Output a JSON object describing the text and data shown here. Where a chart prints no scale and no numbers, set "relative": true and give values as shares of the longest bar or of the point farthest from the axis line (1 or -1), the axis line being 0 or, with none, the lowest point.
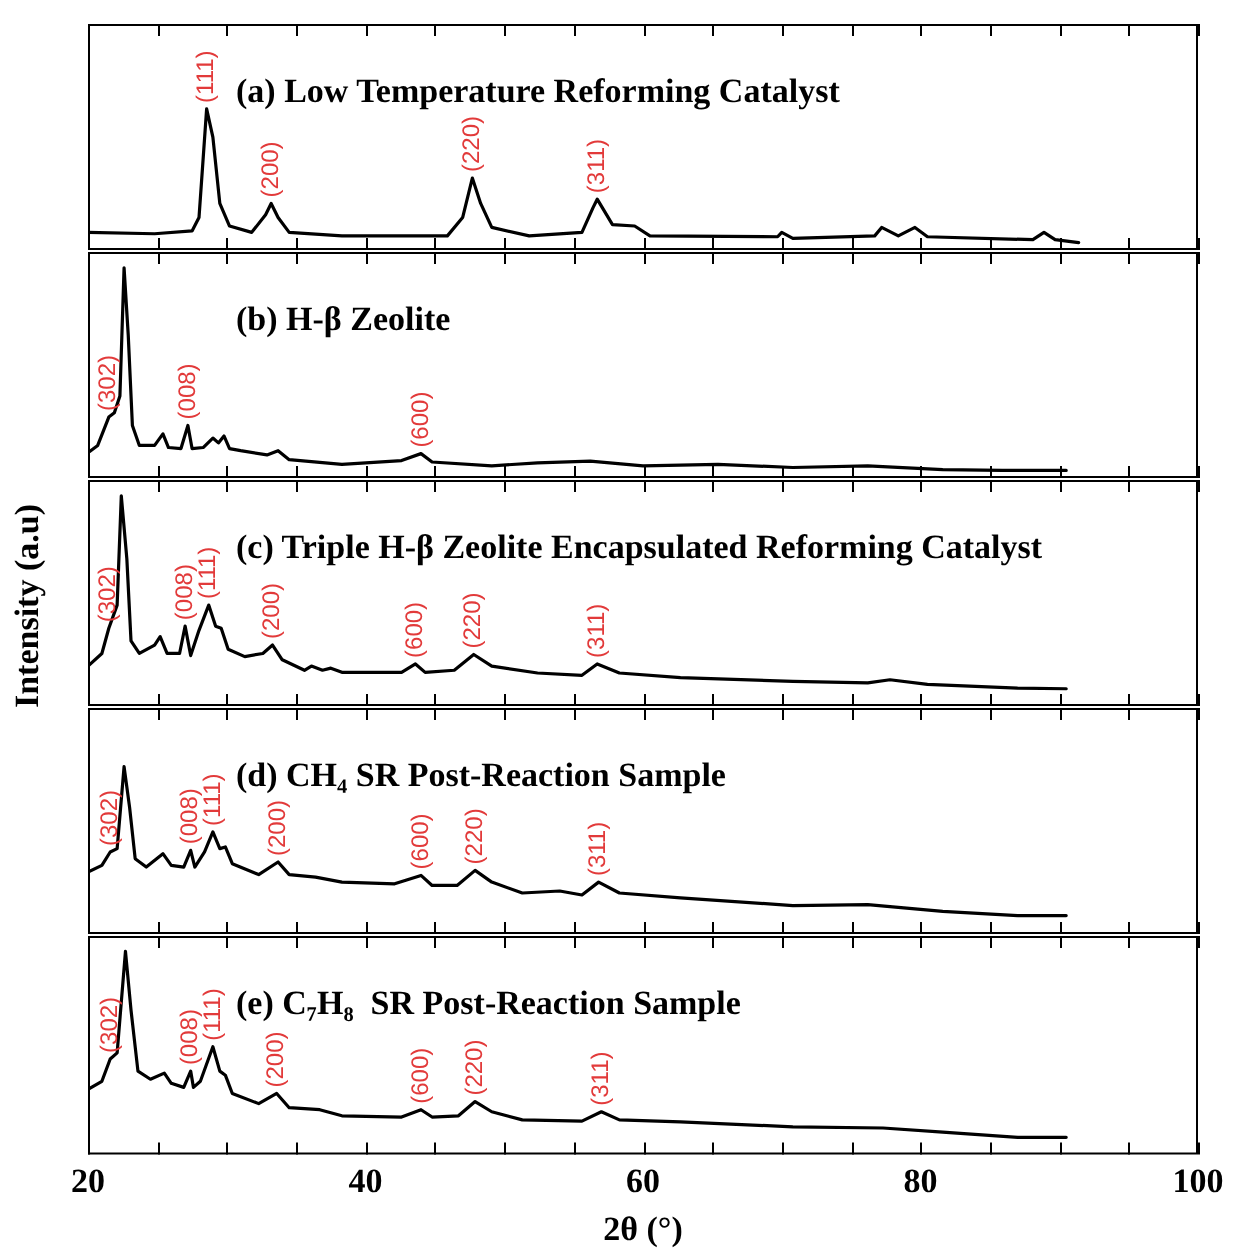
{
  "chart_data": [
    {
      "type": "line",
      "title": "(a) Low Temperature Reforming Catalyst",
      "color": "#000000",
      "relative": true,
      "marker": "none",
      "xlim": [
        20,
        100
      ],
      "tick_labels": false,
      "xticks": [
        20,
        {
          "value": 25,
          "label": null
        },
        {
          "value": 30,
          "label": null
        },
        {
          "value": 35,
          "label": null
        },
        40,
        {
          "value": 45,
          "label": null
        },
        {
          "value": 50,
          "label": null
        },
        {
          "value": 55,
          "label": null
        },
        60,
        {
          "value": 65,
          "label": null
        },
        {
          "value": 70,
          "label": null
        },
        {
          "value": 75,
          "label": null
        },
        80,
        {
          "value": 85,
          "label": null
        },
        {
          "value": 90,
          "label": null
        },
        {
          "value": 95,
          "label": null
        },
        100
      ],
      "x": [
        20,
        24.8,
        27.5,
        28.0,
        28.3,
        28.55,
        29.0,
        29.5,
        30.2,
        31.8,
        32.8,
        33.2,
        33.7,
        34.5,
        38.3,
        45.9,
        47.0,
        47.7,
        48.3,
        49.1,
        51.8,
        55.6,
        56.4,
        56.7,
        57.8,
        59.4,
        60.5,
        69.7,
        70.0,
        70.8,
        76.7,
        77.2,
        78.4,
        79.6,
        80.5,
        88.1,
        88.9,
        89.7,
        91.4
      ],
      "values": [
        0.125,
        0.115,
        0.135,
        0.23,
        0.65,
        1.0,
        0.8,
        0.33,
        0.17,
        0.125,
        0.25,
        0.33,
        0.23,
        0.125,
        0.1,
        0.1,
        0.23,
        0.51,
        0.33,
        0.16,
        0.1,
        0.125,
        0.3,
        0.36,
        0.18,
        0.17,
        0.1,
        0.094,
        0.125,
        0.083,
        0.1,
        0.16,
        0.1,
        0.16,
        0.094,
        0.073,
        0.125,
        0.073,
        0.052
      ],
      "annotations": [
        {
          "text": "(111)",
          "x": 28.55,
          "y": 1.0
        },
        {
          "text": "(200)",
          "x": 33.2,
          "y": 0.33
        },
        {
          "text": "(220)",
          "x": 47.7,
          "y": 0.51
        },
        {
          "text": "(311)",
          "x": 56.7,
          "y": 0.36
        }
      ]
    },
    {
      "type": "line",
      "title": "(b) H-β Zeolite",
      "color": "#000000",
      "relative": true,
      "marker": "none",
      "xlim": [
        20,
        100
      ],
      "tick_labels": false,
      "xticks": [
        20,
        {
          "value": 25,
          "label": null
        },
        {
          "value": 30,
          "label": null
        },
        {
          "value": 35,
          "label": null
        },
        40,
        {
          "value": 45,
          "label": null
        },
        {
          "value": 50,
          "label": null
        },
        {
          "value": 55,
          "label": null
        },
        60,
        {
          "value": 65,
          "label": null
        },
        {
          "value": 70,
          "label": null
        },
        {
          "value": 75,
          "label": null
        },
        80,
        {
          "value": 85,
          "label": null
        },
        {
          "value": 90,
          "label": null
        },
        {
          "value": 95,
          "label": null
        },
        100
      ],
      "x": [
        20,
        20.7,
        21.5,
        21.9,
        22.3,
        22.6,
        22.9,
        23.2,
        23.7,
        24.8,
        25.4,
        25.8,
        26.7,
        27.2,
        27.5,
        28.3,
        29.0,
        29.4,
        29.8,
        30.2,
        31.0,
        32.9,
        33.7,
        34.5,
        38.3,
        42.6,
        44.0,
        44.8,
        49.1,
        52.4,
        56.2,
        60.0,
        65.4,
        70.8,
        76.2,
        81.6,
        85.9,
        90.5
      ],
      "values": [
        0.12,
        0.155,
        0.29,
        0.31,
        0.39,
        1.0,
        0.68,
        0.25,
        0.155,
        0.155,
        0.21,
        0.145,
        0.14,
        0.25,
        0.14,
        0.145,
        0.19,
        0.167,
        0.2,
        0.14,
        0.13,
        0.11,
        0.13,
        0.087,
        0.065,
        0.083,
        0.116,
        0.076,
        0.058,
        0.072,
        0.08,
        0.058,
        0.065,
        0.05,
        0.058,
        0.04,
        0.036,
        0.036
      ],
      "annotations": [
        {
          "text": "(302)",
          "x": 21.5,
          "y": 0.29
        },
        {
          "text": "(008)",
          "x": 27.2,
          "y": 0.25
        },
        {
          "text": "(600)",
          "x": 44.0,
          "y": 0.116
        }
      ]
    },
    {
      "type": "line",
      "title": "(c) Triple H-β Zeolite Encapsulated Reforming Catalyst",
      "ylabel": "Intensity (a.u)",
      "color": "#000000",
      "relative": true,
      "marker": "none",
      "xlim": [
        20,
        100
      ],
      "tick_labels": false,
      "xticks": [
        20,
        {
          "value": 25,
          "label": null
        },
        {
          "value": 30,
          "label": null
        },
        {
          "value": 35,
          "label": null
        },
        40,
        {
          "value": 45,
          "label": null
        },
        {
          "value": 50,
          "label": null
        },
        {
          "value": 55,
          "label": null
        },
        60,
        {
          "value": 65,
          "label": null
        },
        {
          "value": 70,
          "label": null
        },
        {
          "value": 75,
          "label": null
        },
        80,
        {
          "value": 85,
          "label": null
        },
        {
          "value": 90,
          "label": null
        },
        {
          "value": 95,
          "label": null
        },
        100
      ],
      "x": [
        20,
        21.0,
        21.5,
        22.1,
        22.4,
        22.8,
        23.1,
        23.7,
        24.8,
        25.2,
        25.7,
        26.6,
        27.0,
        27.4,
        28.0,
        28.7,
        29.2,
        29.6,
        30.1,
        31.3,
        32.6,
        33.3,
        34.0,
        35.6,
        36.1,
        36.9,
        37.5,
        38.3,
        42.6,
        43.6,
        44.3,
        46.4,
        47.8,
        49.1,
        52.4,
        55.6,
        56.7,
        58.3,
        62.7,
        70.8,
        76.2,
        77.8,
        80.5,
        87.0,
        90.5
      ],
      "values": [
        0.19,
        0.25,
        0.37,
        0.48,
        1.0,
        0.7,
        0.31,
        0.25,
        0.29,
        0.33,
        0.25,
        0.25,
        0.38,
        0.24,
        0.36,
        0.48,
        0.38,
        0.37,
        0.27,
        0.235,
        0.25,
        0.29,
        0.22,
        0.17,
        0.19,
        0.17,
        0.18,
        0.16,
        0.16,
        0.2,
        0.16,
        0.17,
        0.245,
        0.19,
        0.157,
        0.146,
        0.2,
        0.157,
        0.135,
        0.117,
        0.11,
        0.125,
        0.103,
        0.085,
        0.082
      ],
      "annotations": [
        {
          "text": "(302)",
          "x": 21.5,
          "y": 0.37
        },
        {
          "text": "(008)",
          "x": 27.0,
          "y": 0.38
        },
        {
          "text": "(111)",
          "x": 28.7,
          "y": 0.48
        },
        {
          "text": "(200)",
          "x": 33.3,
          "y": 0.29
        },
        {
          "text": "(600)",
          "x": 43.6,
          "y": 0.2
        },
        {
          "text": "(220)",
          "x": 47.8,
          "y": 0.245
        },
        {
          "text": "(311)",
          "x": 56.7,
          "y": 0.2
        }
      ]
    },
    {
      "type": "line",
      "title": "(d) CH₄ SR Post-Reaction Sample",
      "color": "#000000",
      "relative": true,
      "marker": "none",
      "xlim": [
        20,
        100
      ],
      "tick_labels": false,
      "xticks": [
        20,
        {
          "value": 25,
          "label": null
        },
        {
          "value": 30,
          "label": null
        },
        {
          "value": 35,
          "label": null
        },
        40,
        {
          "value": 45,
          "label": null
        },
        {
          "value": 50,
          "label": null
        },
        {
          "value": 55,
          "label": null
        },
        60,
        {
          "value": 65,
          "label": null
        },
        {
          "value": 70,
          "label": null
        },
        {
          "value": 75,
          "label": null
        },
        80,
        {
          "value": 85,
          "label": null
        },
        {
          "value": 90,
          "label": null
        },
        {
          "value": 95,
          "label": null
        },
        100
      ],
      "x": [
        20,
        21.0,
        21.6,
        22.1,
        22.6,
        23.0,
        23.4,
        24.2,
        25.4,
        26.0,
        26.9,
        27.4,
        27.7,
        28.4,
        29.0,
        29.5,
        29.9,
        30.4,
        32.3,
        33.7,
        34.5,
        36.4,
        38.3,
        42.1,
        44.0,
        44.8,
        46.6,
        47.9,
        49.1,
        51.3,
        54.0,
        55.6,
        56.8,
        58.3,
        62.7,
        70.8,
        76.2,
        81.6,
        87.0,
        90.5
      ],
      "values": [
        0.37,
        0.41,
        0.49,
        0.51,
        1.0,
        0.755,
        0.45,
        0.4,
        0.48,
        0.41,
        0.4,
        0.5,
        0.4,
        0.49,
        0.61,
        0.51,
        0.52,
        0.42,
        0.355,
        0.43,
        0.355,
        0.34,
        0.31,
        0.3,
        0.35,
        0.29,
        0.29,
        0.38,
        0.31,
        0.245,
        0.257,
        0.233,
        0.31,
        0.245,
        0.216,
        0.17,
        0.176,
        0.135,
        0.11,
        0.11
      ],
      "annotations": [
        {
          "text": "(302)",
          "x": 21.6,
          "y": 0.49
        },
        {
          "text": "(008)",
          "x": 27.4,
          "y": 0.5
        },
        {
          "text": "(111)",
          "x": 29.0,
          "y": 0.61
        },
        {
          "text": "(200)",
          "x": 33.7,
          "y": 0.43
        },
        {
          "text": "(600)",
          "x": 44.0,
          "y": 0.35
        },
        {
          "text": "(220)",
          "x": 47.9,
          "y": 0.38
        },
        {
          "text": "(311)",
          "x": 56.8,
          "y": 0.31
        }
      ]
    },
    {
      "type": "line",
      "title": "(e) C₇H₈  SR Post-Reaction Sample",
      "xlabel": "2θ (°)",
      "color": "#000000",
      "relative": true,
      "marker": "none",
      "xlim": [
        20,
        100
      ],
      "tick_labels": "x",
      "xticks": [
        20,
        {
          "value": 25,
          "label": null
        },
        {
          "value": 30,
          "label": null
        },
        {
          "value": 35,
          "label": null
        },
        40,
        {
          "value": 45,
          "label": null
        },
        {
          "value": 50,
          "label": null
        },
        {
          "value": 55,
          "label": null
        },
        60,
        {
          "value": 65,
          "label": null
        },
        {
          "value": 70,
          "label": null
        },
        {
          "value": 75,
          "label": null
        },
        80,
        {
          "value": 85,
          "label": null
        },
        {
          "value": 90,
          "label": null
        },
        {
          "value": 95,
          "label": null
        },
        100
      ],
      "x": [
        20,
        21.0,
        21.6,
        22.1,
        22.7,
        23.1,
        23.6,
        24.5,
        25.5,
        26.0,
        26.9,
        27.4,
        27.6,
        28.1,
        29.0,
        29.5,
        29.9,
        30.4,
        32.3,
        33.6,
        34.5,
        36.7,
        38.3,
        42.6,
        44.0,
        44.8,
        46.7,
        47.9,
        49.1,
        51.3,
        55.6,
        57.0,
        58.3,
        62.7,
        70.8,
        77.3,
        81.6,
        87.0,
        90.5
      ],
      "values": [
        0.32,
        0.36,
        0.47,
        0.5,
        1.0,
        0.71,
        0.41,
        0.37,
        0.4,
        0.35,
        0.33,
        0.41,
        0.33,
        0.36,
        0.53,
        0.41,
        0.39,
        0.3,
        0.25,
        0.3,
        0.23,
        0.22,
        0.19,
        0.184,
        0.22,
        0.184,
        0.19,
        0.26,
        0.21,
        0.17,
        0.164,
        0.21,
        0.17,
        0.16,
        0.136,
        0.13,
        0.11,
        0.084,
        0.084
      ],
      "annotations": [
        {
          "text": "(302)",
          "x": 21.6,
          "y": 0.47
        },
        {
          "text": "(008)",
          "x": 27.4,
          "y": 0.41
        },
        {
          "text": "(111)",
          "x": 29.0,
          "y": 0.53
        },
        {
          "text": "(200)",
          "x": 33.6,
          "y": 0.3
        },
        {
          "text": "(600)",
          "x": 44.0,
          "y": 0.22
        },
        {
          "text": "(220)",
          "x": 47.9,
          "y": 0.26
        },
        {
          "text": "(311)",
          "x": 57.0,
          "y": 0.21
        }
      ]
    }
  ]
}
